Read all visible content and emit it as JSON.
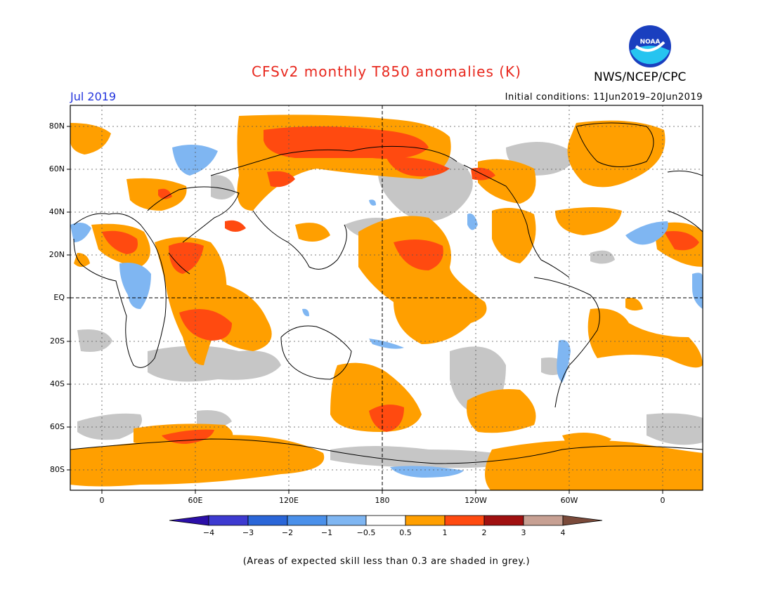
{
  "header": {
    "title": "CFSv2 monthly T850 anomalies (K)",
    "agency": "NWS/NCEP/CPC",
    "month": "Jul 2019",
    "initial_conditions": "Initial conditions: 11Jun2019–20Jun2019"
  },
  "logo": {
    "icon": "noaa-logo-icon",
    "text": "NOAA"
  },
  "axes": {
    "lat_labels": [
      "80N",
      "60N",
      "40N",
      "20N",
      "EQ",
      "20S",
      "40S",
      "60S",
      "80S"
    ],
    "lon_labels": [
      "0",
      "60E",
      "120E",
      "180",
      "120W",
      "60W",
      "0"
    ]
  },
  "colorbar": {
    "labels": [
      "−4",
      "−3",
      "−2",
      "−1",
      "−0.5",
      "0.5",
      "1",
      "2",
      "3",
      "4"
    ],
    "colors": [
      "#2b0fa8",
      "#3d3ad0",
      "#2a66d8",
      "#4a90ea",
      "#7fb6f2",
      "#ffffff",
      "#ff9f00",
      "#ff4a10",
      "#a01010",
      "#c7a093",
      "#7a4a3a"
    ]
  },
  "skill_note": "(Areas of expected skill less than 0.3 are shaded in grey.)"
}
